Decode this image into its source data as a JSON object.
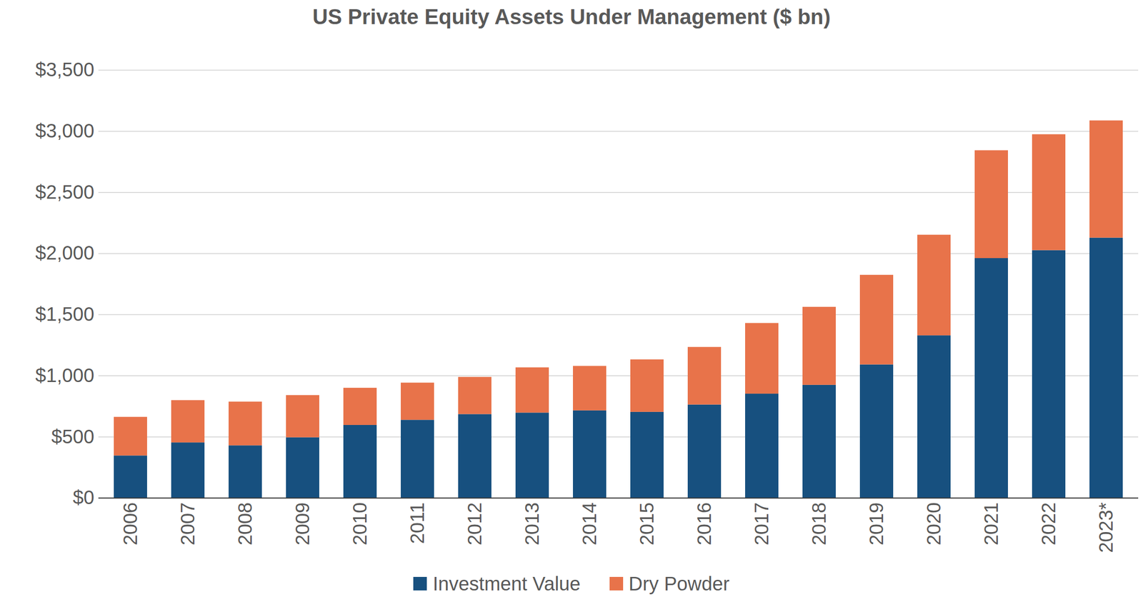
{
  "chart_data": {
    "type": "bar",
    "title": "US Private Equity Assets Under Management ($ bn)",
    "stacked": true,
    "grid": true,
    "legend": "bottom",
    "categories": [
      "2006",
      "2007",
      "2008",
      "2009",
      "2010",
      "2011",
      "2012",
      "2013",
      "2014",
      "2015",
      "2016",
      "2017",
      "2018",
      "2019",
      "2020",
      "2021",
      "2022",
      "2023*"
    ],
    "series": [
      {
        "name": "Investment Value",
        "color": "#17507f",
        "values": [
          346,
          453,
          429,
          495,
          596,
          638,
          685,
          697,
          715,
          703,
          763,
          852,
          924,
          1091,
          1329,
          1961,
          2026,
          2128
        ]
      },
      {
        "name": "Dry Powder",
        "color": "#e8734a",
        "values": [
          316,
          346,
          358,
          345,
          304,
          304,
          304,
          370,
          364,
          429,
          471,
          578,
          638,
          733,
          823,
          882,
          948,
          959
        ]
      }
    ],
    "ylim": [
      0,
      3500
    ],
    "yticks": [
      {
        "value": 0,
        "label": "$0"
      },
      {
        "value": 500,
        "label": "$500"
      },
      {
        "value": 1000,
        "label": "$1,000"
      },
      {
        "value": 1500,
        "label": "$1,500"
      },
      {
        "value": 2000,
        "label": "$2,000"
      },
      {
        "value": 2500,
        "label": "$2,500"
      },
      {
        "value": 3000,
        "label": "$3,000"
      },
      {
        "value": 3500,
        "label": "$3,500"
      }
    ]
  }
}
